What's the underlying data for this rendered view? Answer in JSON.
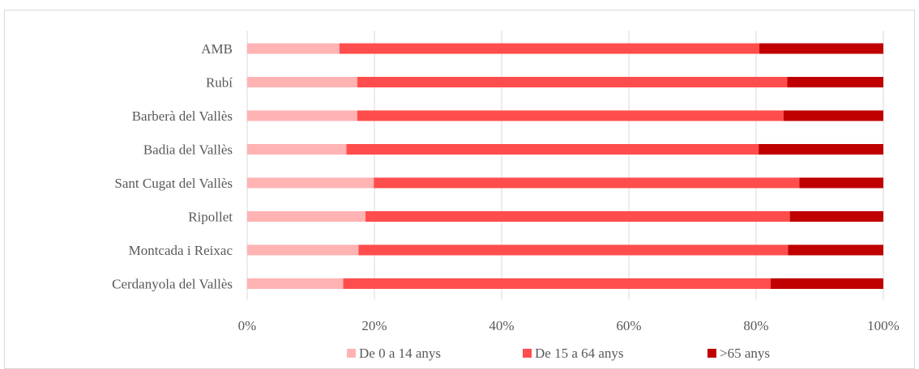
{
  "chart_data": {
    "type": "bar",
    "orientation": "horizontal",
    "stacked": "percent",
    "title": "",
    "xlabel": "",
    "ylabel": "",
    "xlim": [
      0,
      100
    ],
    "x_ticks": [
      "0%",
      "20%",
      "40%",
      "60%",
      "80%",
      "100%"
    ],
    "grid": true,
    "legend_position": "bottom",
    "categories": [
      "AMB",
      "Rubí",
      "Barberà del Vallès",
      "Badia del Vallès",
      "Sant Cugat del Vallès",
      "Ripollet",
      "Montcada i Reixac",
      "Cerdanyola del Vallès"
    ],
    "series": [
      {
        "name": "De 0 a 14 anys",
        "color": "#ffb3b3",
        "values": [
          14.5,
          17.3,
          17.3,
          15.6,
          19.9,
          18.6,
          17.5,
          15.1
        ]
      },
      {
        "name": "De 15 a 64 anys",
        "color": "#ff4d4d",
        "values": [
          66.0,
          67.6,
          67.0,
          64.8,
          66.9,
          66.7,
          67.5,
          67.2
        ]
      },
      {
        "name": ">65 anys",
        "color": "#c00000",
        "values": [
          19.5,
          15.1,
          15.7,
          19.6,
          13.2,
          14.7,
          15.0,
          17.7
        ]
      }
    ]
  }
}
